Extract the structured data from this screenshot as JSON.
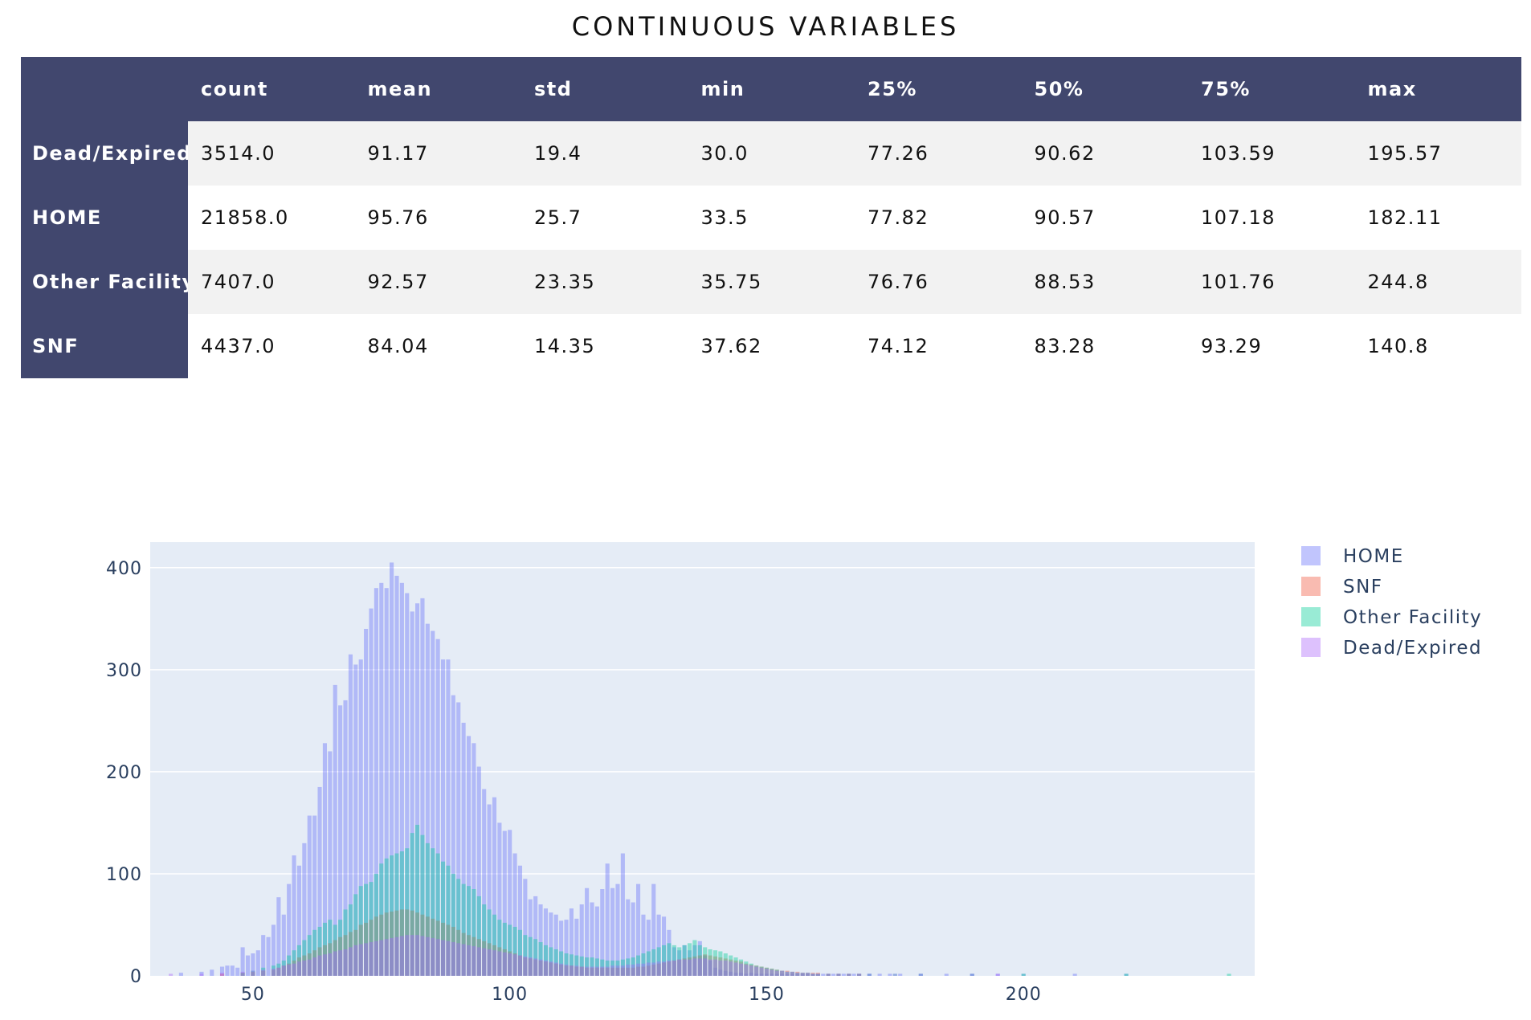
{
  "table": {
    "title": "CONTINUOUS VARIABLES",
    "columns": [
      "count",
      "mean",
      "std",
      "min",
      "25%",
      "50%",
      "75%",
      "max"
    ],
    "rows": [
      {
        "label": "Dead/Expired",
        "values": [
          "3514.0",
          "91.17",
          "19.4",
          "30.0",
          "77.26",
          "90.62",
          "103.59",
          "195.57"
        ]
      },
      {
        "label": "HOME",
        "values": [
          "21858.0",
          "95.76",
          "25.7",
          "33.5",
          "77.82",
          "90.57",
          "107.18",
          "182.11"
        ]
      },
      {
        "label": "Other Facility",
        "values": [
          "7407.0",
          "92.57",
          "23.35",
          "35.75",
          "76.76",
          "88.53",
          "101.76",
          "244.8"
        ]
      },
      {
        "label": "SNF",
        "values": [
          "4437.0",
          "84.04",
          "14.35",
          "37.62",
          "74.12",
          "83.28",
          "93.29",
          "140.8"
        ]
      }
    ]
  },
  "chart_data": {
    "type": "bar",
    "barmode": "overlay",
    "title": "",
    "xlabel": "",
    "ylabel": "",
    "xlim": [
      30,
      245
    ],
    "ylim": [
      0,
      425
    ],
    "xticks": [
      50,
      100,
      150,
      200
    ],
    "yticks": [
      0,
      100,
      200,
      300,
      400
    ],
    "grid": true,
    "legend_position": "right",
    "bin_width": 0.8,
    "series": [
      {
        "name": "HOME",
        "color": "#636efa",
        "x": [
          36,
          40,
          42,
          44,
          45,
          46,
          47,
          48,
          49,
          50,
          51,
          52,
          53,
          54,
          55,
          56,
          57,
          58,
          59,
          60,
          61,
          62,
          63,
          64,
          65,
          66,
          67,
          68,
          69,
          70,
          71,
          72,
          73,
          74,
          75,
          76,
          77,
          78,
          79,
          80,
          81,
          82,
          83,
          84,
          85,
          86,
          87,
          88,
          89,
          90,
          91,
          92,
          93,
          94,
          95,
          96,
          97,
          98,
          99,
          100,
          101,
          102,
          103,
          104,
          105,
          106,
          107,
          108,
          109,
          110,
          111,
          112,
          113,
          114,
          115,
          116,
          117,
          118,
          119,
          120,
          121,
          122,
          123,
          124,
          125,
          126,
          127,
          128,
          129,
          130,
          131,
          132,
          133,
          134,
          135,
          136,
          137,
          138,
          139,
          140,
          141,
          142,
          143,
          144,
          145,
          146,
          147,
          148,
          149,
          150,
          151,
          152,
          153,
          154,
          155,
          156,
          157,
          158,
          159,
          160,
          161,
          162,
          163,
          164,
          165,
          166,
          167,
          168,
          170,
          172,
          174,
          176,
          180,
          185,
          190,
          195,
          200,
          210,
          220
        ],
        "values": [
          3,
          4,
          6,
          9,
          10,
          10,
          8,
          28,
          20,
          22,
          25,
          40,
          38,
          50,
          77,
          60,
          90,
          118,
          108,
          130,
          157,
          157,
          185,
          228,
          220,
          285,
          265,
          270,
          315,
          305,
          310,
          340,
          360,
          380,
          385,
          380,
          405,
          392,
          385,
          375,
          357,
          365,
          370,
          345,
          338,
          330,
          310,
          310,
          275,
          268,
          248,
          235,
          228,
          205,
          183,
          168,
          175,
          150,
          142,
          143,
          120,
          108,
          95,
          75,
          78,
          70,
          66,
          62,
          60,
          54,
          55,
          66,
          56,
          70,
          86,
          72,
          68,
          85,
          110,
          86,
          90,
          120,
          75,
          72,
          90,
          60,
          55,
          90,
          60,
          58,
          45,
          28,
          25,
          30,
          25,
          30,
          34,
          20,
          15,
          8,
          6,
          5,
          4,
          3,
          3,
          2,
          3,
          2,
          2,
          2,
          2,
          2,
          2,
          2,
          2,
          2,
          2,
          2,
          2,
          2,
          2,
          2,
          2,
          2,
          2,
          2,
          2,
          2,
          2,
          2,
          2,
          2,
          2,
          2,
          2,
          2,
          2,
          2,
          2
        ]
      },
      {
        "name": "SNF",
        "color": "#ef553b",
        "x": [
          44,
          48,
          50,
          52,
          54,
          55,
          56,
          57,
          58,
          59,
          60,
          61,
          62,
          63,
          64,
          65,
          66,
          67,
          68,
          69,
          70,
          71,
          72,
          73,
          74,
          75,
          76,
          77,
          78,
          79,
          80,
          81,
          82,
          83,
          84,
          85,
          86,
          87,
          88,
          89,
          90,
          91,
          92,
          93,
          94,
          95,
          96,
          97,
          98,
          99,
          100,
          101,
          102,
          103,
          104,
          105,
          106,
          107,
          108,
          109,
          110,
          111,
          112,
          113,
          114,
          115,
          116,
          117,
          118,
          119,
          120,
          121,
          122,
          123,
          124,
          125,
          126,
          127,
          128,
          129,
          130,
          131,
          132,
          133,
          134,
          135,
          136,
          137,
          138,
          139,
          140,
          141,
          142,
          143,
          144,
          145,
          146,
          147,
          148,
          149,
          150,
          151,
          152,
          153,
          154,
          155,
          156,
          157,
          158,
          159,
          160,
          162,
          164,
          166,
          168
        ],
        "values": [
          2,
          3,
          4,
          5,
          6,
          8,
          10,
          12,
          15,
          18,
          20,
          22,
          25,
          28,
          30,
          32,
          35,
          38,
          40,
          43,
          45,
          50,
          52,
          55,
          58,
          60,
          62,
          63,
          64,
          65,
          65,
          64,
          62,
          60,
          58,
          56,
          54,
          52,
          50,
          48,
          45,
          42,
          40,
          38,
          36,
          34,
          32,
          30,
          28,
          26,
          24,
          22,
          20,
          18,
          17,
          16,
          15,
          14,
          13,
          12,
          11,
          10,
          10,
          9,
          9,
          8,
          8,
          8,
          8,
          8,
          8,
          8,
          8,
          8,
          8,
          9,
          9,
          10,
          11,
          12,
          13,
          14,
          15,
          16,
          17,
          18,
          19,
          20,
          21,
          20,
          19,
          18,
          17,
          16,
          15,
          14,
          12,
          11,
          10,
          9,
          8,
          7,
          6,
          5,
          5,
          4,
          4,
          3,
          3,
          3,
          3,
          2,
          2,
          2,
          2
        ]
      },
      {
        "name": "Other Facility",
        "color": "#00cc96",
        "x": [
          48,
          50,
          52,
          54,
          55,
          56,
          57,
          58,
          59,
          60,
          61,
          62,
          63,
          64,
          65,
          66,
          67,
          68,
          69,
          70,
          71,
          72,
          73,
          74,
          75,
          76,
          77,
          78,
          79,
          80,
          81,
          82,
          83,
          84,
          85,
          86,
          87,
          88,
          89,
          90,
          91,
          92,
          93,
          94,
          95,
          96,
          97,
          98,
          99,
          100,
          101,
          102,
          103,
          104,
          105,
          106,
          107,
          108,
          109,
          110,
          111,
          112,
          113,
          114,
          115,
          116,
          117,
          118,
          119,
          120,
          121,
          122,
          123,
          124,
          125,
          126,
          127,
          128,
          129,
          130,
          131,
          132,
          133,
          134,
          135,
          136,
          137,
          138,
          139,
          140,
          141,
          142,
          143,
          144,
          145,
          146,
          147,
          148,
          149,
          150,
          151,
          152,
          153,
          154,
          155,
          156,
          157,
          158,
          159,
          160,
          162,
          164,
          166,
          168,
          170,
          175,
          180,
          190,
          200,
          220,
          240
        ],
        "values": [
          3,
          5,
          8,
          10,
          12,
          15,
          20,
          25,
          30,
          35,
          40,
          45,
          48,
          52,
          55,
          50,
          55,
          65,
          70,
          80,
          88,
          90,
          92,
          100,
          110,
          115,
          118,
          120,
          122,
          125,
          140,
          148,
          138,
          130,
          125,
          120,
          112,
          108,
          100,
          95,
          90,
          88,
          85,
          78,
          70,
          65,
          60,
          55,
          52,
          50,
          48,
          45,
          40,
          38,
          36,
          33,
          30,
          28,
          26,
          24,
          22,
          21,
          20,
          19,
          18,
          18,
          17,
          16,
          15,
          15,
          15,
          16,
          17,
          18,
          20,
          22,
          24,
          26,
          28,
          30,
          32,
          30,
          28,
          30,
          32,
          35,
          30,
          28,
          26,
          25,
          24,
          22,
          20,
          18,
          16,
          14,
          12,
          10,
          9,
          8,
          7,
          6,
          5,
          4,
          4,
          3,
          3,
          3,
          2,
          2,
          2,
          2,
          2,
          2,
          2,
          2,
          2,
          2,
          2,
          2,
          2
        ]
      },
      {
        "name": "Dead/Expired",
        "color": "#ab63fa",
        "x": [
          34,
          40,
          44,
          48,
          50,
          52,
          54,
          55,
          56,
          57,
          58,
          59,
          60,
          61,
          62,
          63,
          64,
          65,
          66,
          67,
          68,
          69,
          70,
          71,
          72,
          73,
          74,
          75,
          76,
          77,
          78,
          79,
          80,
          81,
          82,
          83,
          84,
          85,
          86,
          87,
          88,
          89,
          90,
          91,
          92,
          93,
          94,
          95,
          96,
          97,
          98,
          99,
          100,
          101,
          102,
          103,
          104,
          105,
          106,
          107,
          108,
          109,
          110,
          111,
          112,
          113,
          114,
          115,
          116,
          117,
          118,
          119,
          120,
          121,
          122,
          123,
          124,
          125,
          126,
          127,
          128,
          129,
          130,
          131,
          132,
          133,
          134,
          135,
          136,
          137,
          138,
          139,
          140,
          141,
          142,
          143,
          144,
          145,
          146,
          147,
          148,
          149,
          150,
          151,
          152,
          153,
          154,
          155,
          156,
          157,
          158,
          159,
          160,
          162,
          164,
          166,
          168,
          170,
          175,
          180,
          190,
          195
        ],
        "values": [
          2,
          2,
          3,
          4,
          5,
          6,
          7,
          8,
          10,
          11,
          12,
          14,
          15,
          16,
          18,
          20,
          21,
          22,
          24,
          25,
          26,
          28,
          30,
          31,
          32,
          33,
          34,
          35,
          36,
          37,
          38,
          39,
          40,
          40,
          40,
          39,
          38,
          37,
          36,
          35,
          34,
          33,
          32,
          31,
          30,
          29,
          28,
          27,
          26,
          25,
          24,
          23,
          22,
          21,
          20,
          19,
          18,
          17,
          16,
          15,
          14,
          13,
          12,
          11,
          10,
          10,
          9,
          9,
          9,
          9,
          9,
          9,
          10,
          10,
          10,
          11,
          11,
          12,
          12,
          13,
          13,
          14,
          14,
          15,
          15,
          16,
          16,
          16,
          17,
          17,
          17,
          16,
          16,
          15,
          15,
          14,
          13,
          12,
          11,
          10,
          9,
          8,
          7,
          6,
          5,
          5,
          4,
          4,
          3,
          3,
          3,
          2,
          2,
          2,
          2,
          2,
          2,
          2,
          2,
          2,
          2,
          2
        ]
      }
    ]
  }
}
